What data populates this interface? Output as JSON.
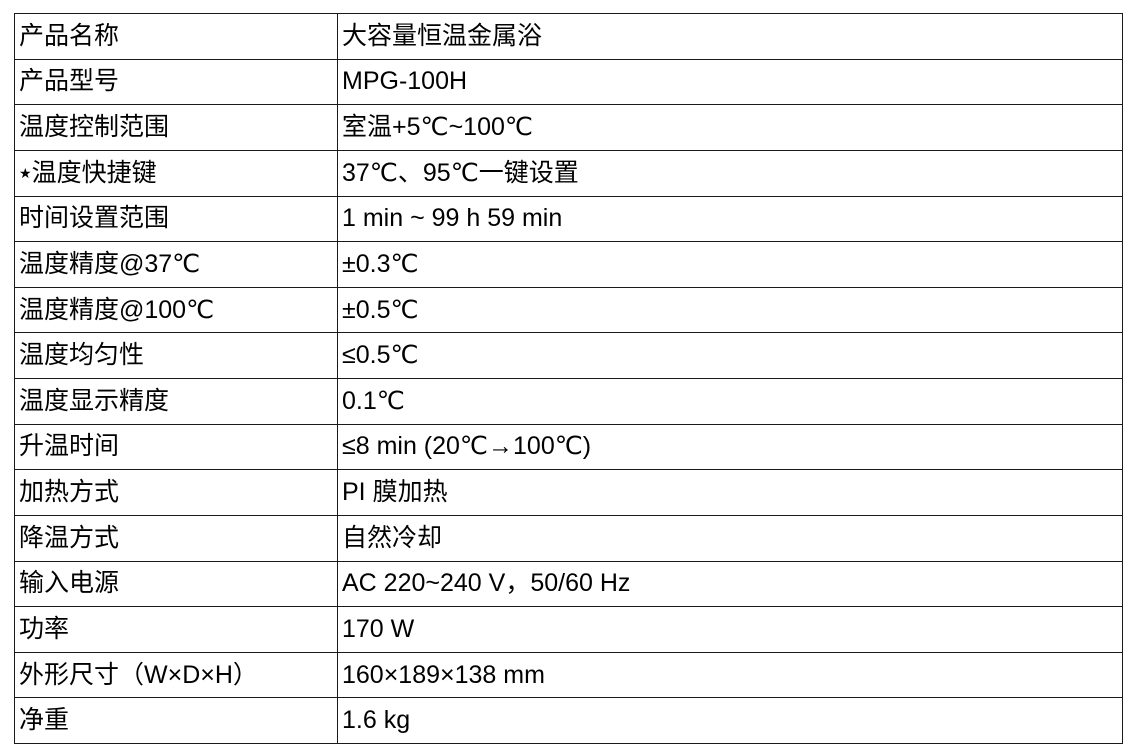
{
  "colors": {
    "background": "#ffffff",
    "border": "#1a1a1a",
    "text": "#000000"
  },
  "table": {
    "rows": [
      {
        "label": "产品名称",
        "value": "大容量恒温金属浴"
      },
      {
        "label": "产品型号",
        "value": "MPG-100H"
      },
      {
        "label": "温度控制范围",
        "value": "室温+5℃~100℃"
      },
      {
        "prefix": "★",
        "label": "温度快捷键",
        "value": "37℃、95℃一键设置"
      },
      {
        "label": "时间设置范围",
        "value": "1 min ~ 99 h 59 min"
      },
      {
        "label": "温度精度@37℃",
        "value": "±0.3℃"
      },
      {
        "label": "温度精度@100℃",
        "value": "±0.5℃"
      },
      {
        "label": "温度均匀性",
        "value": "≤0.5℃"
      },
      {
        "label": "温度显示精度",
        "value": "0.1℃"
      },
      {
        "label": "升温时间",
        "value": "≤8 min (20℃→100℃)"
      },
      {
        "label": "加热方式",
        "value": "PI 膜加热"
      },
      {
        "label": "降温方式",
        "value": "自然冷却"
      },
      {
        "label": "输入电源",
        "value": "AC 220~240 V，50/60 Hz"
      },
      {
        "label": "功率",
        "value": "170 W"
      },
      {
        "label": "外形尺寸（W×D×H）",
        "value": "160×189×138 mm"
      },
      {
        "label": "净重",
        "value": "1.6 kg"
      }
    ]
  }
}
